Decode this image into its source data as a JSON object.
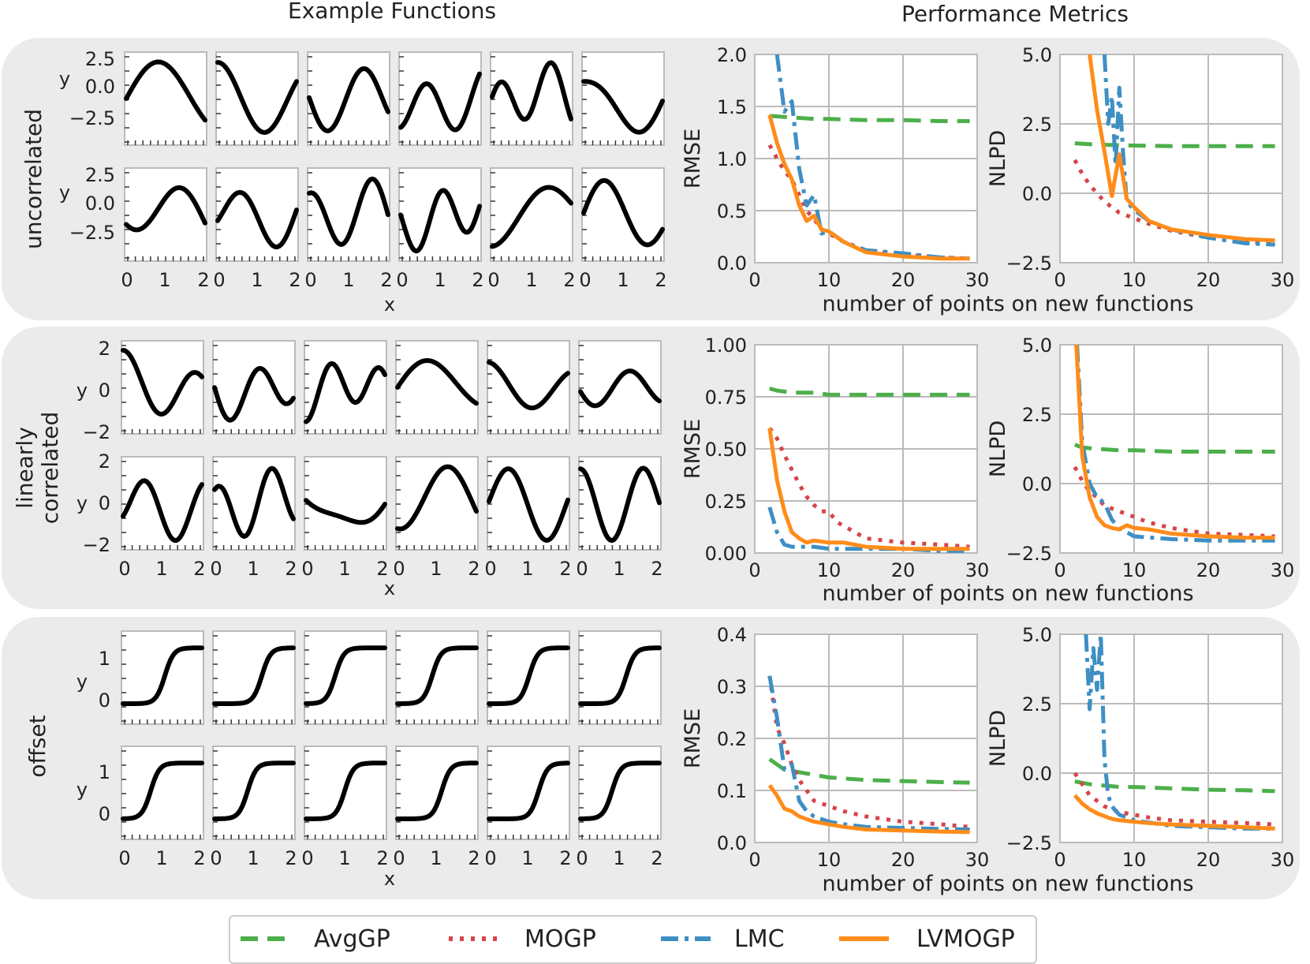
{
  "column_titles": {
    "left": "Example Functions",
    "right": "Performance Metrics"
  },
  "rows": [
    {
      "label": [
        "uncorrelated"
      ],
      "y_ticks": [
        "2.5",
        "0.0",
        "−2.5"
      ]
    },
    {
      "label": [
        "linearly",
        "correlated"
      ],
      "y_ticks": [
        "2",
        "0",
        "−2"
      ]
    },
    {
      "label": [
        "offset"
      ],
      "y_ticks": [
        "1",
        "0"
      ]
    }
  ],
  "example_axis": {
    "x_label": "x",
    "y_label": "y",
    "x_ticks": [
      "0",
      "1",
      "2"
    ]
  },
  "metrics_x_label": "number of points on new functions",
  "legend": [
    {
      "name": "AvgGP",
      "color": "#4daf4a"
    },
    {
      "name": "MOGP",
      "color": "#d6454a"
    },
    {
      "name": "LMC",
      "color": "#3e8fc4"
    },
    {
      "name": "LVMOGP",
      "color": "#ff8c1a"
    }
  ],
  "chart_data": [
    {
      "type": "line",
      "row": 0,
      "metric": "RMSE",
      "ylabel": "RMSE",
      "xlim": [
        0,
        30
      ],
      "ylim": [
        0,
        2.0
      ],
      "xticks": [
        "0",
        "10",
        "20",
        "30"
      ],
      "yticks": [
        "0.0",
        "0.5",
        "1.0",
        "1.5",
        "2.0"
      ],
      "series": [
        {
          "name": "AvgGP",
          "x": [
            2,
            4,
            6,
            8,
            10,
            15,
            20,
            25,
            29
          ],
          "values": [
            1.41,
            1.4,
            1.39,
            1.38,
            1.38,
            1.37,
            1.37,
            1.36,
            1.36
          ]
        },
        {
          "name": "MOGP",
          "x": [
            2,
            3,
            4,
            5,
            6,
            7,
            8,
            9,
            10,
            12,
            15,
            20,
            25,
            29
          ],
          "values": [
            1.13,
            1.0,
            0.88,
            0.8,
            0.65,
            0.5,
            0.42,
            0.32,
            0.28,
            0.2,
            0.12,
            0.08,
            0.05,
            0.04
          ]
        },
        {
          "name": "LMC",
          "x": [
            3,
            4,
            5,
            6,
            7,
            8,
            9,
            10,
            12,
            15,
            20,
            25,
            29
          ],
          "values": [
            2.0,
            1.45,
            1.55,
            0.9,
            0.55,
            0.65,
            0.28,
            0.3,
            0.2,
            0.12,
            0.09,
            0.05,
            0.04
          ]
        },
        {
          "name": "LVMOGP",
          "x": [
            2,
            3,
            4,
            5,
            6,
            7,
            8,
            9,
            10,
            12,
            15,
            20,
            25,
            29
          ],
          "values": [
            1.42,
            1.15,
            0.95,
            0.8,
            0.55,
            0.4,
            0.45,
            0.32,
            0.3,
            0.2,
            0.1,
            0.06,
            0.04,
            0.04
          ]
        }
      ]
    },
    {
      "type": "line",
      "row": 0,
      "metric": "NLPD",
      "ylabel": "NLPD",
      "xlim": [
        0,
        30
      ],
      "ylim": [
        -2.5,
        5.0
      ],
      "xticks": [
        "0",
        "10",
        "20",
        "30"
      ],
      "yticks": [
        "−2.5",
        "0.0",
        "2.5",
        "5.0"
      ],
      "series": [
        {
          "name": "AvgGP",
          "x": [
            2,
            5,
            10,
            15,
            20,
            25,
            29
          ],
          "values": [
            1.8,
            1.75,
            1.72,
            1.7,
            1.7,
            1.7,
            1.7
          ]
        },
        {
          "name": "MOGP",
          "x": [
            2,
            3,
            4,
            5,
            6,
            7,
            8,
            10,
            12,
            15,
            20,
            25,
            29
          ],
          "values": [
            1.2,
            0.7,
            0.3,
            0.0,
            -0.3,
            -0.5,
            -0.7,
            -0.9,
            -1.1,
            -1.35,
            -1.6,
            -1.75,
            -1.8
          ]
        },
        {
          "name": "LMC",
          "x": [
            6,
            6.5,
            7,
            7.5,
            8,
            8.5,
            9,
            10,
            12,
            15,
            20,
            25,
            29
          ],
          "values": [
            5.0,
            2.5,
            3.5,
            1.0,
            3.8,
            1.5,
            -0.3,
            -0.6,
            -1.0,
            -1.3,
            -1.6,
            -1.8,
            -1.85
          ]
        },
        {
          "name": "LVMOGP",
          "x": [
            4,
            5,
            6,
            7,
            8,
            9,
            10,
            12,
            15,
            20,
            25,
            29
          ],
          "values": [
            5.0,
            3.0,
            1.5,
            -0.1,
            1.4,
            -0.2,
            -0.5,
            -1.0,
            -1.3,
            -1.5,
            -1.65,
            -1.7
          ]
        }
      ]
    },
    {
      "type": "line",
      "row": 1,
      "metric": "RMSE",
      "ylabel": "RMSE",
      "xlim": [
        0,
        30
      ],
      "ylim": [
        0,
        1.0
      ],
      "xticks": [
        "0",
        "10",
        "20",
        "30"
      ],
      "yticks": [
        "0.00",
        "0.25",
        "0.50",
        "0.75",
        "1.00"
      ],
      "series": [
        {
          "name": "AvgGP",
          "x": [
            2,
            3,
            5,
            8,
            10,
            15,
            20,
            25,
            29
          ],
          "values": [
            0.79,
            0.78,
            0.77,
            0.77,
            0.76,
            0.76,
            0.76,
            0.76,
            0.76
          ]
        },
        {
          "name": "MOGP",
          "x": [
            2,
            3,
            4,
            5,
            6,
            7,
            8,
            9,
            10,
            11,
            12,
            15,
            20,
            25,
            29
          ],
          "values": [
            0.6,
            0.55,
            0.47,
            0.4,
            0.33,
            0.27,
            0.23,
            0.2,
            0.2,
            0.15,
            0.13,
            0.07,
            0.05,
            0.04,
            0.03
          ]
        },
        {
          "name": "LMC",
          "x": [
            2,
            3,
            4,
            5,
            6,
            8,
            10,
            15,
            20,
            25,
            29
          ],
          "values": [
            0.22,
            0.1,
            0.04,
            0.03,
            0.03,
            0.03,
            0.02,
            0.02,
            0.02,
            0.01,
            0.01
          ]
        },
        {
          "name": "LVMOGP",
          "x": [
            2,
            3,
            4,
            5,
            6,
            7,
            8,
            10,
            12,
            15,
            20,
            25,
            29
          ],
          "values": [
            0.6,
            0.35,
            0.2,
            0.1,
            0.07,
            0.05,
            0.06,
            0.05,
            0.05,
            0.03,
            0.02,
            0.02,
            0.02
          ]
        }
      ]
    },
    {
      "type": "line",
      "row": 1,
      "metric": "NLPD",
      "ylabel": "NLPD",
      "xlim": [
        0,
        30
      ],
      "ylim": [
        -2.5,
        5.0
      ],
      "xticks": [
        "0",
        "10",
        "20",
        "30"
      ],
      "yticks": [
        "−2.5",
        "0.0",
        "2.5",
        "5.0"
      ],
      "series": [
        {
          "name": "AvgGP",
          "x": [
            2,
            3,
            5,
            8,
            10,
            15,
            20,
            25,
            29
          ],
          "values": [
            1.4,
            1.3,
            1.25,
            1.2,
            1.2,
            1.15,
            1.15,
            1.15,
            1.15
          ]
        },
        {
          "name": "MOGP",
          "x": [
            2,
            3,
            4,
            5,
            6,
            7,
            8,
            10,
            12,
            15,
            20,
            25,
            29
          ],
          "values": [
            0.6,
            0.1,
            -0.3,
            -0.5,
            -0.8,
            -0.9,
            -1.0,
            -1.2,
            -1.4,
            -1.6,
            -1.8,
            -1.85,
            -1.9
          ]
        },
        {
          "name": "LMC",
          "x": [
            2.3,
            3,
            4,
            5,
            6,
            7,
            8,
            10,
            15,
            20,
            25,
            29
          ],
          "values": [
            5.0,
            1.5,
            0.0,
            -0.5,
            -0.7,
            -1.3,
            -1.6,
            -1.9,
            -2.0,
            -2.05,
            -2.05,
            -2.05
          ]
        },
        {
          "name": "LVMOGP",
          "x": [
            2.2,
            3,
            4,
            5,
            6,
            7,
            8,
            9,
            10,
            12,
            15,
            20,
            25,
            29
          ],
          "values": [
            5.0,
            1.0,
            -0.5,
            -1.2,
            -1.5,
            -1.6,
            -1.65,
            -1.5,
            -1.6,
            -1.65,
            -1.8,
            -1.9,
            -1.95,
            -1.95
          ]
        }
      ]
    },
    {
      "type": "line",
      "row": 2,
      "metric": "RMSE",
      "ylabel": "RMSE",
      "xlim": [
        0,
        30
      ],
      "ylim": [
        0,
        0.4
      ],
      "xticks": [
        "0",
        "10",
        "20",
        "30"
      ],
      "yticks": [
        "0.0",
        "0.1",
        "0.2",
        "0.3",
        "0.4"
      ],
      "series": [
        {
          "name": "AvgGP",
          "x": [
            2,
            3,
            4,
            6,
            8,
            10,
            15,
            20,
            25,
            29
          ],
          "values": [
            0.16,
            0.15,
            0.14,
            0.135,
            0.13,
            0.125,
            0.12,
            0.118,
            0.116,
            0.115
          ]
        },
        {
          "name": "MOGP",
          "x": [
            2,
            3,
            4,
            5,
            6,
            7,
            8,
            10,
            12,
            15,
            20,
            25,
            29
          ],
          "values": [
            0.32,
            0.22,
            0.19,
            0.15,
            0.12,
            0.1,
            0.08,
            0.07,
            0.06,
            0.05,
            0.04,
            0.035,
            0.03
          ]
        },
        {
          "name": "LMC",
          "x": [
            2,
            3,
            4,
            5,
            6,
            7,
            8,
            10,
            12,
            15,
            20,
            25,
            29
          ],
          "values": [
            0.32,
            0.24,
            0.14,
            0.15,
            0.08,
            0.06,
            0.05,
            0.04,
            0.035,
            0.03,
            0.028,
            0.026,
            0.025
          ]
        },
        {
          "name": "LVMOGP",
          "x": [
            2,
            3,
            4,
            5,
            6,
            7,
            8,
            10,
            12,
            15,
            20,
            25,
            29
          ],
          "values": [
            0.11,
            0.09,
            0.065,
            0.06,
            0.05,
            0.045,
            0.04,
            0.035,
            0.03,
            0.025,
            0.023,
            0.021,
            0.02
          ]
        }
      ]
    },
    {
      "type": "line",
      "row": 2,
      "metric": "NLPD",
      "ylabel": "NLPD",
      "xlim": [
        0,
        30
      ],
      "ylim": [
        -2.5,
        5.0
      ],
      "xticks": [
        "0",
        "10",
        "20",
        "30"
      ],
      "yticks": [
        "−2.5",
        "0.0",
        "2.5",
        "5.0"
      ],
      "series": [
        {
          "name": "AvgGP",
          "x": [
            2,
            4,
            6,
            8,
            10,
            15,
            20,
            25,
            29
          ],
          "values": [
            -0.3,
            -0.4,
            -0.45,
            -0.5,
            -0.5,
            -0.55,
            -0.6,
            -0.62,
            -0.65
          ]
        },
        {
          "name": "MOGP",
          "x": [
            2,
            3,
            4,
            5,
            6,
            7,
            8,
            10,
            12,
            15,
            20,
            25,
            29
          ],
          "values": [
            0.0,
            -0.4,
            -0.8,
            -1.0,
            -1.2,
            -1.3,
            -1.4,
            -1.5,
            -1.6,
            -1.7,
            -1.75,
            -1.8,
            -1.85
          ]
        },
        {
          "name": "LMC",
          "x": [
            3.5,
            4,
            4.5,
            5,
            5.5,
            6,
            6.5,
            7,
            8,
            10,
            15,
            20,
            25,
            29
          ],
          "values": [
            5.0,
            2.3,
            4.5,
            3.0,
            5.0,
            0.5,
            -0.8,
            -1.2,
            -1.5,
            -1.7,
            -1.9,
            -1.95,
            -2.0,
            -2.0
          ]
        },
        {
          "name": "LVMOGP",
          "x": [
            2,
            3,
            4,
            5,
            6,
            7,
            8,
            10,
            12,
            15,
            20,
            25,
            29
          ],
          "values": [
            -0.8,
            -1.1,
            -1.3,
            -1.45,
            -1.55,
            -1.65,
            -1.7,
            -1.75,
            -1.8,
            -1.85,
            -1.9,
            -1.95,
            -2.0
          ]
        }
      ]
    }
  ]
}
